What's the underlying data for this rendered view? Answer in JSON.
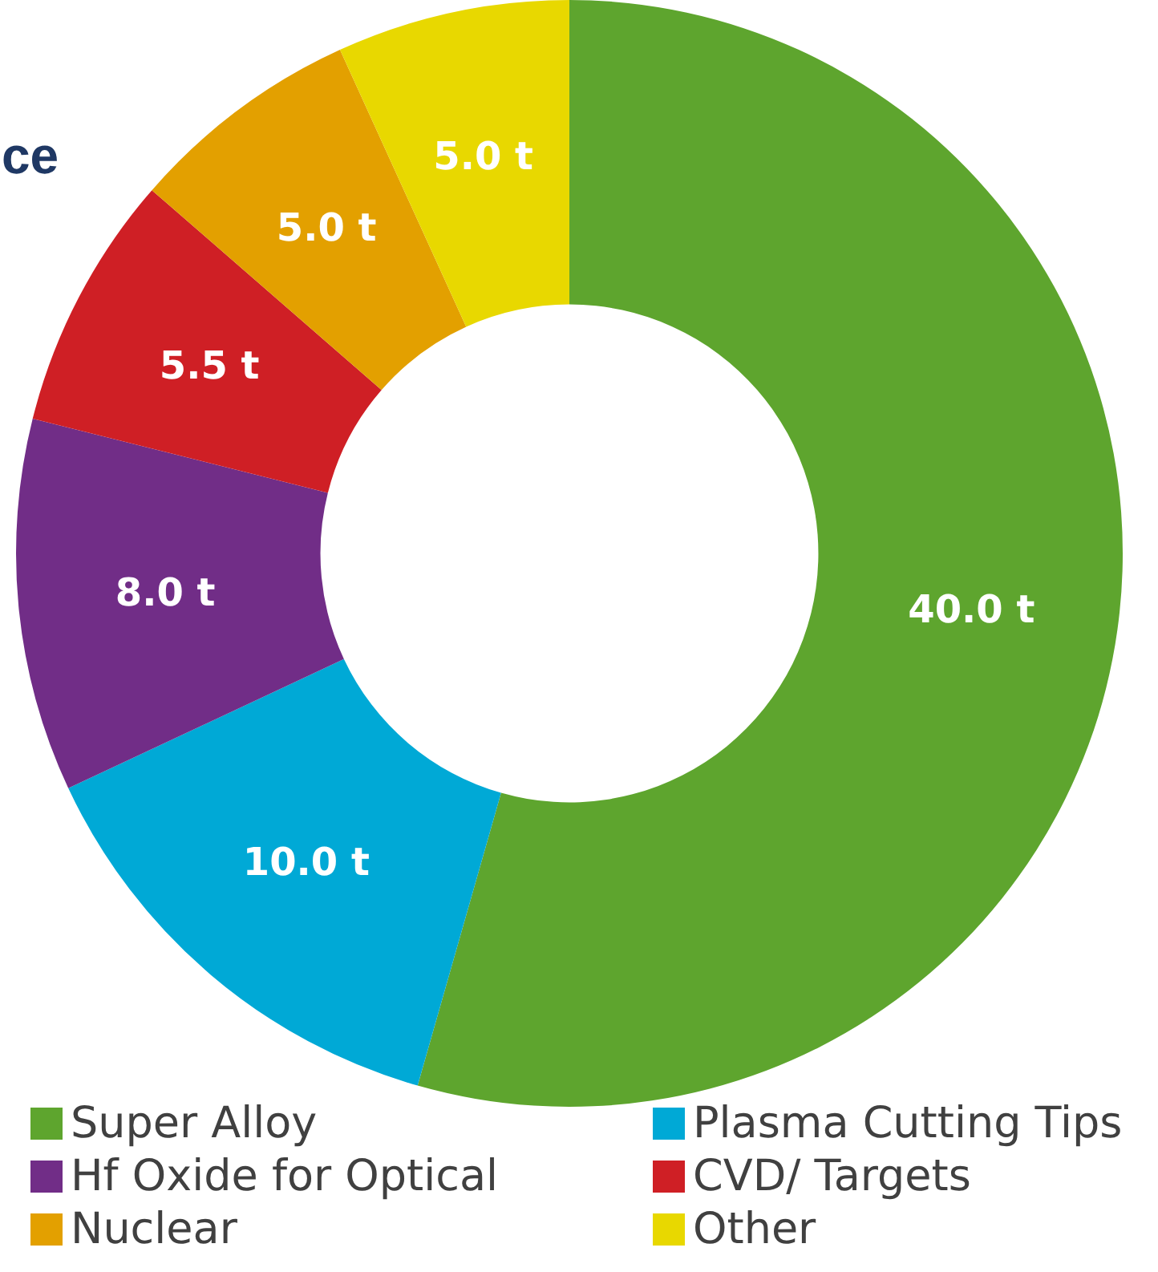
{
  "chart_data": {
    "type": "donut",
    "title": "ce",
    "categories": [
      "Super Alloy",
      "Plasma Cutting Tips",
      "Hf Oxide for Optical",
      "CVD/ Targets",
      "Nuclear",
      "Other"
    ],
    "values": [
      40.0,
      10.0,
      8.0,
      5.5,
      5.0,
      5.0
    ],
    "value_labels": [
      "40.0 t",
      "10.0 t",
      "8.0 t",
      "5.5 t",
      "5.0 t",
      "5.0 t"
    ],
    "colors": [
      "#5ea52e",
      "#00a9d6",
      "#712d87",
      "#cf1f25",
      "#e3a000",
      "#e8d800"
    ],
    "legend": "bottom"
  }
}
